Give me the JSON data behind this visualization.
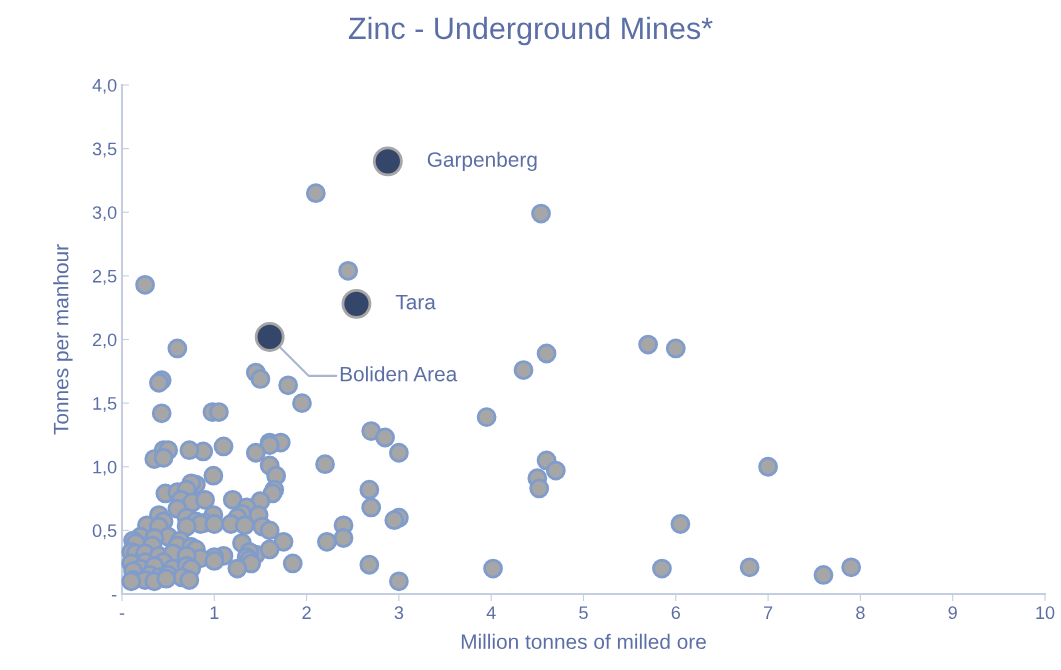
{
  "chart_data": {
    "type": "scatter",
    "title": "Zinc - Underground Mines*",
    "xlabel": "Million tonnes of milled ore",
    "ylabel": "Tonnes per manhour",
    "xlim": [
      0,
      10
    ],
    "xticks": [
      {
        "value": 0,
        "label": "-"
      },
      1,
      2,
      3,
      4,
      5,
      6,
      7,
      8,
      9,
      10
    ],
    "ylim": [
      0,
      4
    ],
    "yticks": [
      {
        "value": 0,
        "label": "-"
      },
      {
        "value": 0.5,
        "label": "0,5"
      },
      {
        "value": 1,
        "label": "1,0"
      },
      {
        "value": 1.5,
        "label": "1,5"
      },
      {
        "value": 2,
        "label": "2,0"
      },
      {
        "value": 2.5,
        "label": "2,5"
      },
      {
        "value": 3,
        "label": "3,0"
      },
      {
        "value": 3.5,
        "label": "3,5"
      },
      {
        "value": 4,
        "label": "4,0"
      }
    ],
    "grid": false,
    "legend": false,
    "marker": "circle",
    "series": [
      {
        "color": "#a6a6a6",
        "x": [
          2.1,
          4.54,
          2.45,
          0.25,
          0.6,
          5.7,
          6.0,
          4.6,
          4.35,
          1.45,
          1.5,
          1.8,
          0.43,
          0.4,
          1.95,
          0.43,
          0.98,
          1.05,
          3.95,
          2.7,
          2.85,
          1.6,
          1.72,
          1.6,
          0.45,
          0.5,
          0.88,
          1.1,
          3.0,
          1.45,
          0.35,
          0.45,
          0.73,
          2.2,
          1.6,
          4.6,
          4.7,
          7.0,
          4.5,
          4.52,
          0.99,
          1.67,
          0.8,
          0.75,
          2.68,
          1.65,
          1.63,
          0.47,
          0.6,
          0.7,
          0.64,
          0.76,
          0.9,
          1.2,
          1.5,
          2.7,
          0.6,
          1.35,
          1.3,
          1.48,
          1.25,
          0.7,
          0.99,
          0.4,
          0.45,
          0.8,
          0.9,
          0.85,
          1.18,
          1.33,
          1.52,
          1.6,
          0.27,
          0.4,
          0.7,
          2.4,
          3.0,
          2.95,
          6.05,
          2.4,
          2.22,
          1.75,
          1.3,
          1.0,
          0.2,
          0.12,
          0.15,
          0.5,
          0.35,
          0.63,
          0.33,
          0.6,
          0.75,
          0.8,
          1.45,
          1.38,
          1.1,
          1.35,
          1.0,
          0.85,
          1.38,
          1.0,
          1.6,
          1.85,
          1.4,
          1.25,
          2.68,
          0.1,
          0.15,
          0.25,
          0.4,
          0.55,
          0.7,
          0.45,
          0.25,
          0.1,
          0.2,
          0.35,
          0.55,
          0.7,
          0.75,
          0.12,
          0.3,
          0.4,
          0.5,
          0.65,
          0.12,
          0.25,
          0.35,
          0.48,
          0.73,
          0.1,
          3.0,
          4.02,
          5.85,
          6.8,
          7.6,
          7.9
        ],
        "values": [
          3.15,
          2.99,
          2.54,
          2.43,
          1.93,
          1.96,
          1.93,
          1.89,
          1.76,
          1.74,
          1.69,
          1.64,
          1.68,
          1.66,
          1.5,
          1.42,
          1.43,
          1.43,
          1.39,
          1.28,
          1.23,
          1.19,
          1.19,
          1.17,
          1.13,
          1.13,
          1.12,
          1.16,
          1.11,
          1.11,
          1.06,
          1.07,
          1.13,
          1.02,
          1.01,
          1.05,
          0.97,
          1.0,
          0.91,
          0.83,
          0.93,
          0.93,
          0.86,
          0.87,
          0.82,
          0.82,
          0.79,
          0.79,
          0.8,
          0.82,
          0.74,
          0.72,
          0.74,
          0.74,
          0.73,
          0.68,
          0.67,
          0.68,
          0.63,
          0.62,
          0.6,
          0.6,
          0.62,
          0.62,
          0.57,
          0.57,
          0.56,
          0.55,
          0.55,
          0.54,
          0.53,
          0.5,
          0.54,
          0.53,
          0.53,
          0.54,
          0.6,
          0.58,
          0.55,
          0.44,
          0.41,
          0.41,
          0.4,
          0.55,
          0.45,
          0.42,
          0.4,
          0.45,
          0.44,
          0.42,
          0.38,
          0.38,
          0.37,
          0.35,
          0.31,
          0.33,
          0.3,
          0.29,
          0.29,
          0.28,
          0.27,
          0.26,
          0.35,
          0.24,
          0.24,
          0.2,
          0.23,
          0.33,
          0.32,
          0.32,
          0.3,
          0.32,
          0.3,
          0.25,
          0.25,
          0.24,
          0.2,
          0.22,
          0.2,
          0.22,
          0.2,
          0.18,
          0.15,
          0.13,
          0.15,
          0.13,
          0.11,
          0.11,
          0.1,
          0.12,
          0.11,
          0.1,
          0.1,
          0.2,
          0.2,
          0.21,
          0.15,
          0.21
        ]
      },
      {
        "color": "#34466a",
        "x": [
          2.88,
          2.54,
          1.6
        ],
        "values": [
          3.4,
          2.28,
          2.02
        ]
      }
    ],
    "annotations": [
      {
        "text": "Garpenberg",
        "x": 2.88,
        "y": 3.4
      },
      {
        "text": "Tara",
        "x": 2.54,
        "y": 2.28
      },
      {
        "text": "Boliden Area",
        "x": 1.6,
        "y": 2.02
      }
    ]
  }
}
